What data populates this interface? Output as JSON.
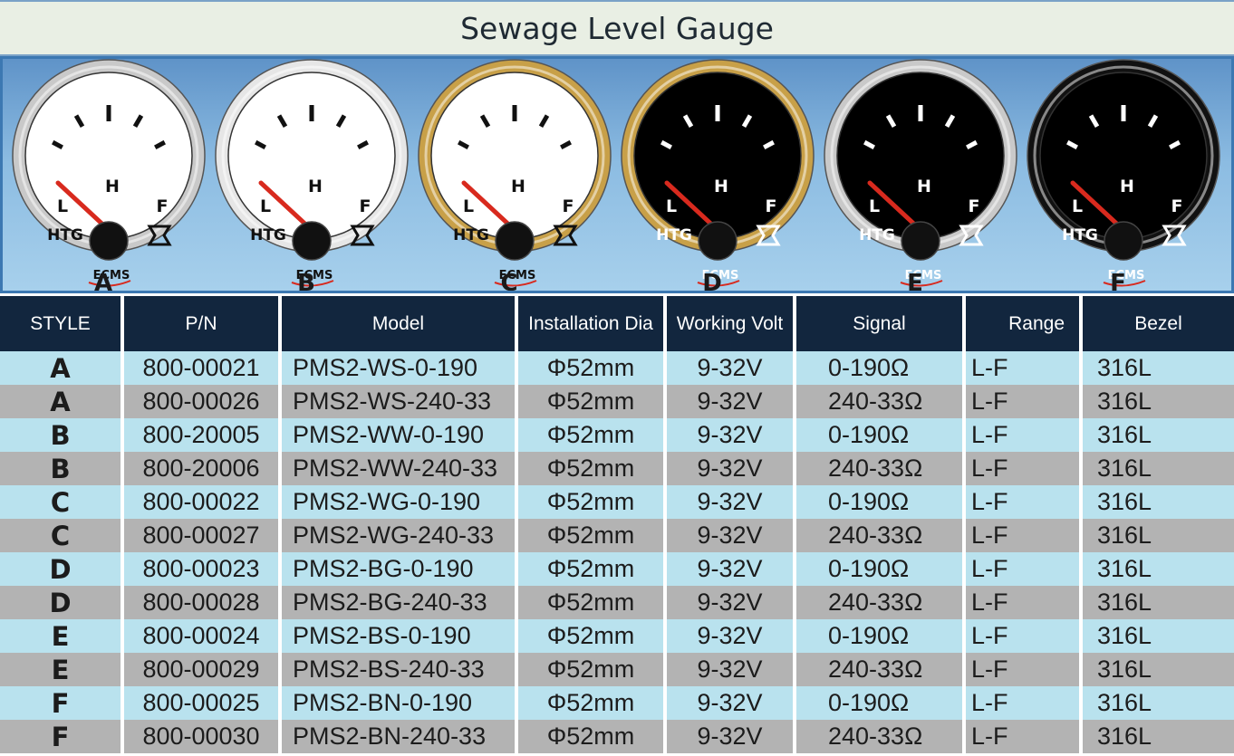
{
  "title": "Sewage Level Gauge",
  "gauge_labels": {
    "low": "L",
    "half": "H",
    "full": "F",
    "tank": "HTG",
    "brand": "ECMS",
    "tank_icon": "tank-symbol-icon"
  },
  "gauges": [
    {
      "style": "A",
      "bezel": "#c9c9c9",
      "face": "#ffffff",
      "text": "#111111"
    },
    {
      "style": "B",
      "bezel": "#e6e6e6",
      "face": "#ffffff",
      "text": "#111111"
    },
    {
      "style": "C",
      "bezel": "#c8a048",
      "face": "#ffffff",
      "text": "#111111"
    },
    {
      "style": "D",
      "bezel": "#c8a048",
      "face": "#000000",
      "text": "#ffffff"
    },
    {
      "style": "E",
      "bezel": "#c9c9c9",
      "face": "#000000",
      "text": "#ffffff"
    },
    {
      "style": "F",
      "bezel": "#111111",
      "face": "#000000",
      "text": "#ffffff"
    }
  ],
  "colors": {
    "needle": "#d82a1e",
    "header_bg": "#12263e",
    "row_light": "#b9e2ee",
    "row_dark": "#b3b3b3"
  },
  "table": {
    "headers": [
      "STYLE",
      "P/N",
      "Model",
      "Installation Dia",
      "Working Volt",
      "Signal",
      "Range",
      "Bezel"
    ],
    "rows": [
      {
        "style": "A",
        "pn": "800-00021",
        "model": "PMS2-WS-0-190",
        "dia": "Φ52mm",
        "volt": "9-32V",
        "signal": "0-190Ω",
        "range": "L-F",
        "bezel": "316L"
      },
      {
        "style": "A",
        "pn": "800-00026",
        "model": "PMS2-WS-240-33",
        "dia": "Φ52mm",
        "volt": "9-32V",
        "signal": "240-33Ω",
        "range": "L-F",
        "bezel": "316L"
      },
      {
        "style": "B",
        "pn": "800-20005",
        "model": "PMS2-WW-0-190",
        "dia": "Φ52mm",
        "volt": "9-32V",
        "signal": "0-190Ω",
        "range": "L-F",
        "bezel": "316L"
      },
      {
        "style": "B",
        "pn": "800-20006",
        "model": "PMS2-WW-240-33",
        "dia": "Φ52mm",
        "volt": "9-32V",
        "signal": "240-33Ω",
        "range": "L-F",
        "bezel": "316L"
      },
      {
        "style": "C",
        "pn": "800-00022",
        "model": "PMS2-WG-0-190",
        "dia": "Φ52mm",
        "volt": "9-32V",
        "signal": "0-190Ω",
        "range": "L-F",
        "bezel": "316L"
      },
      {
        "style": "C",
        "pn": "800-00027",
        "model": "PMS2-WG-240-33",
        "dia": "Φ52mm",
        "volt": "9-32V",
        "signal": "240-33Ω",
        "range": "L-F",
        "bezel": "316L"
      },
      {
        "style": "D",
        "pn": "800-00023",
        "model": "PMS2-BG-0-190",
        "dia": "Φ52mm",
        "volt": "9-32V",
        "signal": "0-190Ω",
        "range": "L-F",
        "bezel": "316L"
      },
      {
        "style": "D",
        "pn": "800-00028",
        "model": "PMS2-BG-240-33",
        "dia": "Φ52mm",
        "volt": "9-32V",
        "signal": "240-33Ω",
        "range": "L-F",
        "bezel": "316L"
      },
      {
        "style": "E",
        "pn": "800-00024",
        "model": "PMS2-BS-0-190",
        "dia": "Φ52mm",
        "volt": "9-32V",
        "signal": "0-190Ω",
        "range": "L-F",
        "bezel": "316L"
      },
      {
        "style": "E",
        "pn": "800-00029",
        "model": "PMS2-BS-240-33",
        "dia": "Φ52mm",
        "volt": "9-32V",
        "signal": "240-33Ω",
        "range": "L-F",
        "bezel": "316L"
      },
      {
        "style": "F",
        "pn": "800-00025",
        "model": "PMS2-BN-0-190",
        "dia": "Φ52mm",
        "volt": "9-32V",
        "signal": "0-190Ω",
        "range": "L-F",
        "bezel": "316L"
      },
      {
        "style": "F",
        "pn": "800-00030",
        "model": "PMS2-BN-240-33",
        "dia": "Φ52mm",
        "volt": "9-32V",
        "signal": "240-33Ω",
        "range": "L-F",
        "bezel": "316L"
      }
    ]
  }
}
